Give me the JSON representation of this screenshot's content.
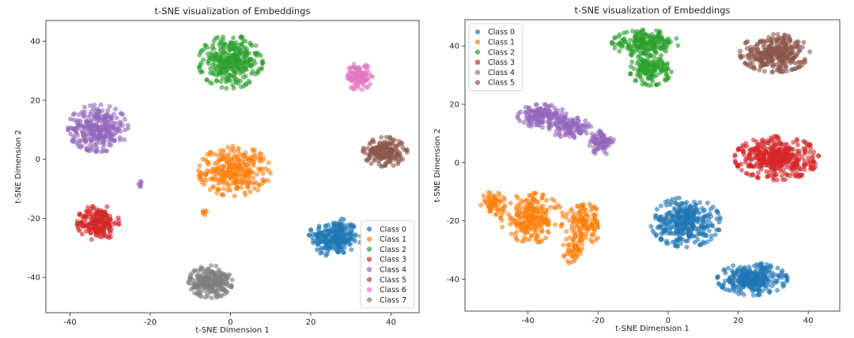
{
  "chart_data": [
    {
      "type": "scatter",
      "title": "t-SNE visualization of Embeddings",
      "xlabel": "t-SNE Dimension 1",
      "ylabel": "t-SNE Dimension 2",
      "xlim": [
        -46,
        47
      ],
      "ylim": [
        -52,
        47
      ],
      "xticks": [
        -40,
        -20,
        0,
        20,
        40
      ],
      "yticks": [
        -40,
        -20,
        0,
        20,
        40
      ],
      "legend_position": "lower-right",
      "series": [
        {
          "name": "Class 0",
          "color": "#1f77b4",
          "clusters": [
            {
              "cx": 26,
              "cy": -26.5,
              "rx": 6.5,
              "ry": 6.5,
              "n": 240
            }
          ]
        },
        {
          "name": "Class 1",
          "color": "#ff7f0e",
          "clusters": [
            {
              "cx": 1,
              "cy": -4,
              "rx": 9,
              "ry": 8.5,
              "n": 300
            },
            {
              "cx": -6.5,
              "cy": -18,
              "rx": 0.6,
              "ry": 1,
              "n": 6
            }
          ]
        },
        {
          "name": "Class 2",
          "color": "#2ca02c",
          "clusters": [
            {
              "cx": 0,
              "cy": 33,
              "rx": 8,
              "ry": 9,
              "n": 320
            }
          ]
        },
        {
          "name": "Class 3",
          "color": "#d62728",
          "clusters": [
            {
              "cx": -33,
              "cy": -21.5,
              "rx": 5.2,
              "ry": 6,
              "n": 200
            }
          ]
        },
        {
          "name": "Class 4",
          "color": "#9467bd",
          "clusters": [
            {
              "cx": -33,
              "cy": 10.5,
              "rx": 7.5,
              "ry": 8,
              "n": 300
            },
            {
              "cx": -22.5,
              "cy": -8.5,
              "rx": 0.6,
              "ry": 1,
              "n": 6
            }
          ]
        },
        {
          "name": "Class 5",
          "color": "#8c564b",
          "clusters": [
            {
              "cx": 38.5,
              "cy": 2.5,
              "rx": 5.5,
              "ry": 5,
              "n": 190
            }
          ]
        },
        {
          "name": "Class 6",
          "color": "#e377c2",
          "clusters": [
            {
              "cx": 32,
              "cy": 28,
              "rx": 3.4,
              "ry": 4.6,
              "n": 110
            }
          ]
        },
        {
          "name": "Class 7",
          "color": "#7f7f7f",
          "clusters": [
            {
              "cx": -5,
              "cy": -41.5,
              "rx": 5.5,
              "ry": 5.5,
              "n": 240
            }
          ]
        }
      ]
    },
    {
      "type": "scatter",
      "title": "t-SNE visualization of Embeddings",
      "xlabel": "t-SNE Dimension 1",
      "ylabel": "t-SNE Dimension 2",
      "xlim": [
        -58,
        49
      ],
      "ylim": [
        -51,
        49
      ],
      "xticks": [
        -40,
        -20,
        0,
        20,
        40
      ],
      "yticks": [
        -40,
        -20,
        0,
        20,
        40
      ],
      "legend_position": "upper-left",
      "series": [
        {
          "name": "Class 0",
          "color": "#1f77b4",
          "clusters": [
            {
              "cx": 5,
              "cy": -20.5,
              "rx": 10,
              "ry": 8.5,
              "n": 330
            },
            {
              "cx": 24,
              "cy": -40,
              "rx": 10,
              "ry": 5.5,
              "n": 300
            }
          ]
        },
        {
          "name": "Class 1",
          "color": "#ff7f0e",
          "clusters": [
            {
              "cx": -50,
              "cy": -14,
              "rx": 3.5,
              "ry": 4,
              "n": 60
            },
            {
              "cx": -39,
              "cy": -19,
              "rx": 9,
              "ry": 8.5,
              "n": 240
            },
            {
              "cx": -24,
              "cy": -21,
              "rx": 5.5,
              "ry": 7,
              "n": 130
            },
            {
              "cx": -27,
              "cy": -30,
              "rx": 3,
              "ry": 5,
              "n": 50
            }
          ]
        },
        {
          "name": "Class 2",
          "color": "#2ca02c",
          "clusters": [
            {
              "cx": -6.5,
              "cy": 41,
              "rx": 9.5,
              "ry": 4.5,
              "n": 200
            },
            {
              "cx": -5,
              "cy": 32,
              "rx": 6,
              "ry": 5.5,
              "n": 140
            }
          ]
        },
        {
          "name": "Class 3",
          "color": "#d62728",
          "clusters": [
            {
              "cx": 31,
              "cy": 1.5,
              "rx": 12,
              "ry": 7.5,
              "n": 420
            }
          ]
        },
        {
          "name": "Class 4",
          "color": "#9467bd",
          "clusters": [
            {
              "cx": -36,
              "cy": 16,
              "rx": 7,
              "ry": 4,
              "n": 150
            },
            {
              "cx": -28,
              "cy": 12,
              "rx": 6,
              "ry": 3.5,
              "n": 110
            },
            {
              "cx": -19,
              "cy": 7,
              "rx": 3.5,
              "ry": 4.5,
              "n": 90
            }
          ]
        },
        {
          "name": "Class 5",
          "color": "#8c564b",
          "clusters": [
            {
              "cx": 30.5,
              "cy": 37.5,
              "rx": 10,
              "ry": 6.5,
              "n": 330
            }
          ]
        }
      ]
    }
  ]
}
